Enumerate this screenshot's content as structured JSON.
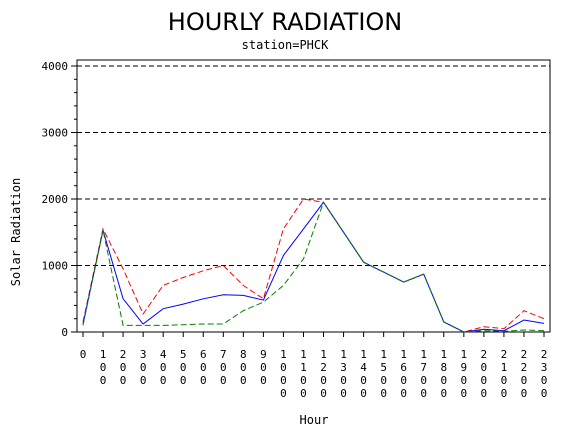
{
  "chart_data": {
    "type": "line",
    "title": "HOURLY RADIATION",
    "subtitle": "station=PHCK",
    "xlabel": "Hour",
    "ylabel": "Solar Radiation",
    "ylim": [
      0,
      4000
    ],
    "yticks": [
      "0",
      "1000",
      "2000",
      "3000",
      "4000"
    ],
    "grid": "horizontal dashed at major y ticks",
    "x": [
      0,
      100,
      200,
      300,
      400,
      500,
      600,
      700,
      800,
      900,
      1000,
      1100,
      1200,
      1300,
      1400,
      1500,
      1600,
      1700,
      1800,
      1900,
      2000,
      2100,
      2200,
      2300
    ],
    "xtick_labels": [
      "0",
      "100",
      "200",
      "300",
      "400",
      "500",
      "600",
      "700",
      "800",
      "900",
      "1000",
      "1100",
      "1200",
      "1300",
      "1400",
      "1500",
      "1600",
      "1700",
      "1800",
      "1900",
      "2000",
      "2100",
      "2200",
      "2300"
    ],
    "series": [
      {
        "color": "#ff0000",
        "dash": "dashed",
        "values": [
          150,
          1550,
          950,
          270,
          700,
          820,
          920,
          1000,
          700,
          500,
          1550,
          2000,
          1950,
          1500,
          1050,
          900,
          750,
          870,
          150,
          0,
          80,
          50,
          320,
          200
        ]
      },
      {
        "color": "#0000ff",
        "dash": "solid",
        "values": [
          120,
          1530,
          500,
          120,
          350,
          420,
          500,
          560,
          550,
          480,
          1150,
          1550,
          1950,
          1500,
          1050,
          900,
          750,
          870,
          150,
          0,
          40,
          20,
          180,
          130
        ]
      },
      {
        "color": "#008000",
        "dash": "dashed",
        "values": [
          100,
          1530,
          100,
          100,
          100,
          110,
          120,
          120,
          320,
          450,
          700,
          1100,
          1950,
          1500,
          1050,
          900,
          750,
          870,
          150,
          0,
          20,
          10,
          30,
          20
        ]
      }
    ]
  }
}
